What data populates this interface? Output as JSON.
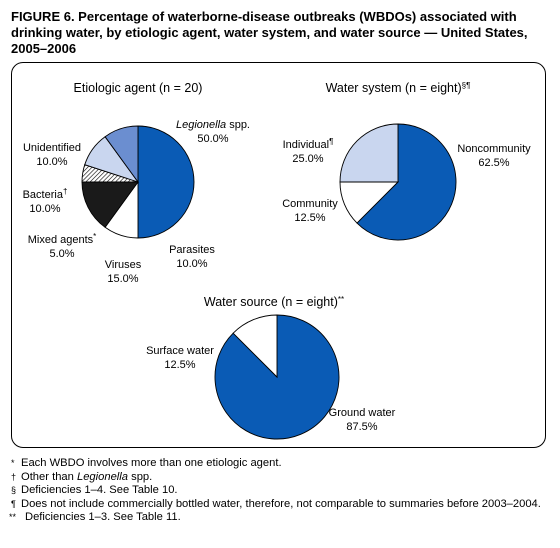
{
  "figure": {
    "title": "FIGURE 6. Percentage of waterborne-disease outbreaks (WBDOs) associated with drinking water, by etiologic agent, water system, and water source — United States, 2005–2006"
  },
  "chart_data": [
    {
      "type": "pie",
      "title": "Etiologic agent (n = 20)",
      "slices": [
        {
          "label": "Legionella spp.",
          "italic_part": "Legionella",
          "value": 50.0,
          "value_label": "50.0%",
          "color": "#0a5bb5"
        },
        {
          "label": "Parasites",
          "value": 10.0,
          "value_label": "10.0%",
          "color": "#ffffff"
        },
        {
          "label": "Viruses",
          "value": 15.0,
          "value_label": "15.0%",
          "color": "#1a1a1a"
        },
        {
          "label": "Mixed agents",
          "marker": "*",
          "value": 5.0,
          "value_label": "5.0%",
          "color": "#ffffff",
          "pattern": "hatch"
        },
        {
          "label": "Bacteria",
          "marker": "†",
          "value": 10.0,
          "value_label": "10.0%",
          "color": "#c9d6ef"
        },
        {
          "label": "Unidentified",
          "value": 10.0,
          "value_label": "10.0%",
          "color": "#6b8ed0"
        }
      ]
    },
    {
      "type": "pie",
      "title": "Water system (n = eight)",
      "title_marker": "§¶",
      "slices": [
        {
          "label": "Noncommunity",
          "value": 62.5,
          "value_label": "62.5%",
          "color": "#0a5bb5"
        },
        {
          "label": "Community",
          "value": 12.5,
          "value_label": "12.5%",
          "color": "#ffffff"
        },
        {
          "label": "Individual",
          "marker": "¶",
          "value": 25.0,
          "value_label": "25.0%",
          "color": "#c9d6ef"
        }
      ]
    },
    {
      "type": "pie",
      "title": "Water source (n = eight)",
      "title_marker": "**",
      "slices": [
        {
          "label": "Ground water",
          "value": 87.5,
          "value_label": "87.5%",
          "color": "#0a5bb5"
        },
        {
          "label": "Surface water",
          "value": 12.5,
          "value_label": "12.5%",
          "color": "#ffffff"
        }
      ]
    }
  ],
  "footnotes": [
    {
      "marker": "*",
      "text": "Each WBDO involves more than one etiologic agent."
    },
    {
      "marker": "†",
      "text_before": "Other than ",
      "italic": "Legionella",
      "text_after": " spp."
    },
    {
      "marker": "§",
      "text": "Deficiencies 1–4. See Table 10."
    },
    {
      "marker": "¶",
      "text": "Does not include commercially bottled water, therefore, not comparable to summaries before 2003–2004."
    },
    {
      "marker": "**",
      "text": "Deficiencies 1–3. See Table 11."
    }
  ]
}
